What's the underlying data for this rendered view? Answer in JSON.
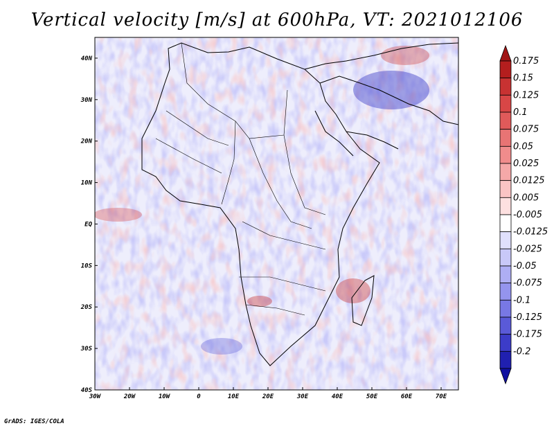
{
  "title": "Vertical velocity [m/s] at 600hPa, VT: 2021012106",
  "credit": "GrADS: IGES/COLA",
  "map": {
    "lon_range": [
      -30,
      75
    ],
    "lat_range": [
      -40,
      45
    ],
    "lat_ticks": [
      {
        "value": 40,
        "label": "40N"
      },
      {
        "value": 30,
        "label": "30N"
      },
      {
        "value": 20,
        "label": "20N"
      },
      {
        "value": 10,
        "label": "10N"
      },
      {
        "value": 0,
        "label": "EQ"
      },
      {
        "value": -10,
        "label": "10S"
      },
      {
        "value": -20,
        "label": "20S"
      },
      {
        "value": -30,
        "label": "30S"
      },
      {
        "value": -40,
        "label": "40S"
      }
    ],
    "lon_ticks": [
      {
        "value": -30,
        "label": "30W"
      },
      {
        "value": -20,
        "label": "20W"
      },
      {
        "value": -10,
        "label": "10W"
      },
      {
        "value": 0,
        "label": "0"
      },
      {
        "value": 10,
        "label": "10E"
      },
      {
        "value": 20,
        "label": "20E"
      },
      {
        "value": 30,
        "label": "30E"
      },
      {
        "value": 40,
        "label": "40E"
      },
      {
        "value": 50,
        "label": "50E"
      },
      {
        "value": 60,
        "label": "60E"
      },
      {
        "value": 70,
        "label": "70E"
      }
    ]
  },
  "colorbar": {
    "levels": [
      {
        "label": "0.175",
        "color": "#b41e1e"
      },
      {
        "label": "0.15",
        "color": "#c83232"
      },
      {
        "label": "0.125",
        "color": "#d84646"
      },
      {
        "label": "0.1",
        "color": "#e05a5a"
      },
      {
        "label": "0.075",
        "color": "#e87474"
      },
      {
        "label": "0.05",
        "color": "#f08c8c"
      },
      {
        "label": "0.025",
        "color": "#f5a8a8"
      },
      {
        "label": "0.0125",
        "color": "#fac4c4"
      },
      {
        "label": "0.005",
        "color": "#fde0e0"
      },
      {
        "label": "-0.005",
        "color": "#ffffff"
      },
      {
        "label": "-0.0125",
        "color": "#e0e0fc"
      },
      {
        "label": "-0.025",
        "color": "#c8c8f8"
      },
      {
        "label": "-0.05",
        "color": "#aeaef4"
      },
      {
        "label": "-0.075",
        "color": "#9494ee"
      },
      {
        "label": "-0.1",
        "color": "#7878e4"
      },
      {
        "label": "-0.125",
        "color": "#5a5ad8"
      },
      {
        "label": "-0.175",
        "color": "#3c3cc8"
      },
      {
        "label": "-0.2",
        "color": "#2020b0"
      }
    ],
    "top_extend_color": "#a01414",
    "bottom_extend_color": "#1010a0"
  }
}
